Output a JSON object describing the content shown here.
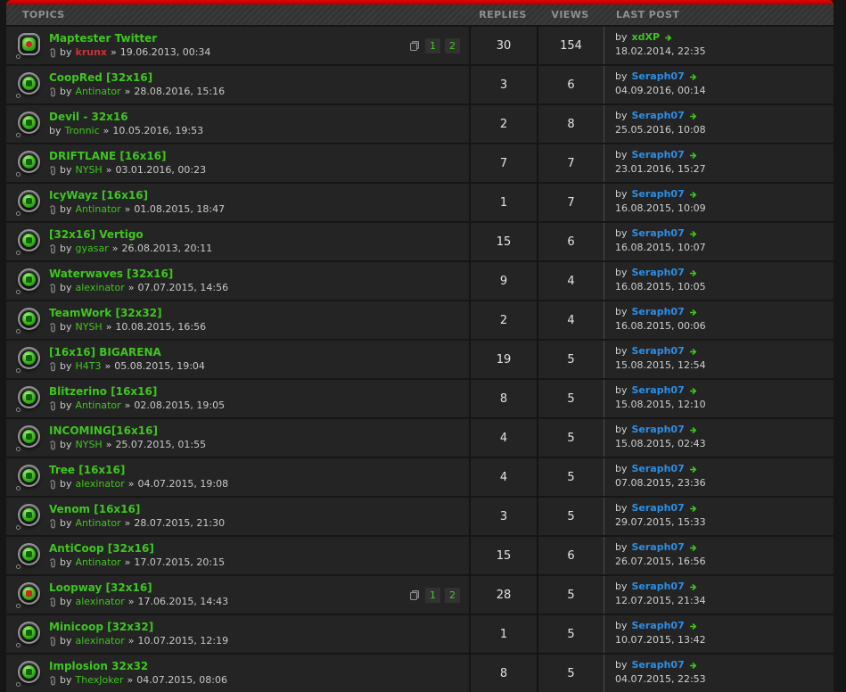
{
  "columns": {
    "topics": "TOPICS",
    "replies": "REPLIES",
    "views": "VIEWS",
    "last_post": "LAST POST"
  },
  "literals": {
    "by": "by",
    "separator": "»"
  },
  "colors": {
    "accent_red": "#cc0000",
    "topic_green": "#3fc61e",
    "author_red": "#cc3333",
    "last_author_blue": "#2b8fe6",
    "row_background": "#242424",
    "page_background": "#161616"
  },
  "topics": [
    {
      "title": "Maptester Twitter",
      "author": "krunx",
      "author_style": "red",
      "posted": "19.06.2013, 00:34",
      "attachment": true,
      "pages": [
        "1",
        "2"
      ],
      "replies": "30",
      "views": "154",
      "icon_variant": "hot-square",
      "last_post": {
        "author": "xdXP",
        "author_style": "green",
        "date": "18.02.2014, 22:35"
      }
    },
    {
      "title": "CoopRed [32x16]",
      "author": "Antinator",
      "author_style": "green",
      "posted": "28.08.2016, 15:16",
      "attachment": true,
      "pages": [],
      "replies": "3",
      "views": "6",
      "icon_variant": "normal",
      "last_post": {
        "author": "Seraph07",
        "author_style": "blue",
        "date": "04.09.2016, 00:14"
      }
    },
    {
      "title": "Devil - 32x16",
      "author": "Tronnic",
      "author_style": "green",
      "posted": "10.05.2016, 19:53",
      "attachment": false,
      "pages": [],
      "replies": "2",
      "views": "8",
      "icon_variant": "normal",
      "last_post": {
        "author": "Seraph07",
        "author_style": "blue",
        "date": "25.05.2016, 10:08"
      }
    },
    {
      "title": "DRIFTLANE [16x16]",
      "author": "NYSH",
      "author_style": "green",
      "posted": "03.01.2016, 00:23",
      "attachment": true,
      "pages": [],
      "replies": "7",
      "views": "7",
      "icon_variant": "normal",
      "last_post": {
        "author": "Seraph07",
        "author_style": "blue",
        "date": "23.01.2016, 15:27"
      }
    },
    {
      "title": "IcyWayz [16x16]",
      "author": "Antinator",
      "author_style": "green",
      "posted": "01.08.2015, 18:47",
      "attachment": true,
      "pages": [],
      "replies": "1",
      "views": "7",
      "icon_variant": "normal",
      "last_post": {
        "author": "Seraph07",
        "author_style": "blue",
        "date": "16.08.2015, 10:09"
      }
    },
    {
      "title": "[32x16] Vertigo",
      "author": "gyasar",
      "author_style": "green",
      "posted": "26.08.2013, 20:11",
      "attachment": true,
      "pages": [],
      "replies": "15",
      "views": "6",
      "icon_variant": "normal",
      "last_post": {
        "author": "Seraph07",
        "author_style": "blue",
        "date": "16.08.2015, 10:07"
      }
    },
    {
      "title": "Waterwaves [32x16]",
      "author": "alexinator",
      "author_style": "green",
      "posted": "07.07.2015, 14:56",
      "attachment": true,
      "pages": [],
      "replies": "9",
      "views": "4",
      "icon_variant": "normal",
      "last_post": {
        "author": "Seraph07",
        "author_style": "blue",
        "date": "16.08.2015, 10:05"
      }
    },
    {
      "title": "TeamWork [32x32]",
      "author": "NYSH",
      "author_style": "green",
      "posted": "10.08.2015, 16:56",
      "attachment": true,
      "pages": [],
      "replies": "2",
      "views": "4",
      "icon_variant": "normal",
      "last_post": {
        "author": "Seraph07",
        "author_style": "blue",
        "date": "16.08.2015, 00:06"
      }
    },
    {
      "title": "[16x16] BIGARENA",
      "author": "H4T3",
      "author_style": "green",
      "posted": "05.08.2015, 19:04",
      "attachment": true,
      "pages": [],
      "replies": "19",
      "views": "5",
      "icon_variant": "normal",
      "last_post": {
        "author": "Seraph07",
        "author_style": "blue",
        "date": "15.08.2015, 12:54"
      }
    },
    {
      "title": "Blitzerino [16x16]",
      "author": "Antinator",
      "author_style": "green",
      "posted": "02.08.2015, 19:05",
      "attachment": true,
      "pages": [],
      "replies": "8",
      "views": "5",
      "icon_variant": "normal",
      "last_post": {
        "author": "Seraph07",
        "author_style": "blue",
        "date": "15.08.2015, 12:10"
      }
    },
    {
      "title": "INCOMING[16x16]",
      "author": "NYSH",
      "author_style": "green",
      "posted": "25.07.2015, 01:55",
      "attachment": true,
      "pages": [],
      "replies": "4",
      "views": "5",
      "icon_variant": "normal",
      "last_post": {
        "author": "Seraph07",
        "author_style": "blue",
        "date": "15.08.2015, 02:43"
      }
    },
    {
      "title": "Tree [16x16]",
      "author": "alexinator",
      "author_style": "green",
      "posted": "04.07.2015, 19:08",
      "attachment": true,
      "pages": [],
      "replies": "4",
      "views": "5",
      "icon_variant": "normal",
      "last_post": {
        "author": "Seraph07",
        "author_style": "blue",
        "date": "07.08.2015, 23:36"
      }
    },
    {
      "title": "Venom [16x16]",
      "author": "Antinator",
      "author_style": "green",
      "posted": "28.07.2015, 21:30",
      "attachment": true,
      "pages": [],
      "replies": "3",
      "views": "5",
      "icon_variant": "normal",
      "last_post": {
        "author": "Seraph07",
        "author_style": "blue",
        "date": "29.07.2015, 15:33"
      }
    },
    {
      "title": "AntiCoop [32x16]",
      "author": "Antinator",
      "author_style": "green",
      "posted": "17.07.2015, 20:15",
      "attachment": true,
      "pages": [],
      "replies": "15",
      "views": "6",
      "icon_variant": "normal",
      "last_post": {
        "author": "Seraph07",
        "author_style": "blue",
        "date": "26.07.2015, 16:56"
      }
    },
    {
      "title": "Loopway [32x16]",
      "author": "alexinator",
      "author_style": "green",
      "posted": "17.06.2015, 14:43",
      "attachment": true,
      "pages": [
        "1",
        "2"
      ],
      "replies": "28",
      "views": "5",
      "icon_variant": "red-dot",
      "last_post": {
        "author": "Seraph07",
        "author_style": "blue",
        "date": "12.07.2015, 21:34"
      }
    },
    {
      "title": "Minicoop [32x32]",
      "author": "alexinator",
      "author_style": "green",
      "posted": "10.07.2015, 12:19",
      "attachment": true,
      "pages": [],
      "replies": "1",
      "views": "5",
      "icon_variant": "normal",
      "last_post": {
        "author": "Seraph07",
        "author_style": "blue",
        "date": "10.07.2015, 13:42"
      }
    },
    {
      "title": "Implosion 32x32",
      "author": "ThexJoker",
      "author_style": "green",
      "posted": "04.07.2015, 08:06",
      "attachment": true,
      "pages": [],
      "replies": "8",
      "views": "5",
      "icon_variant": "normal",
      "last_post": {
        "author": "Seraph07",
        "author_style": "blue",
        "date": "04.07.2015, 22:53"
      }
    }
  ]
}
